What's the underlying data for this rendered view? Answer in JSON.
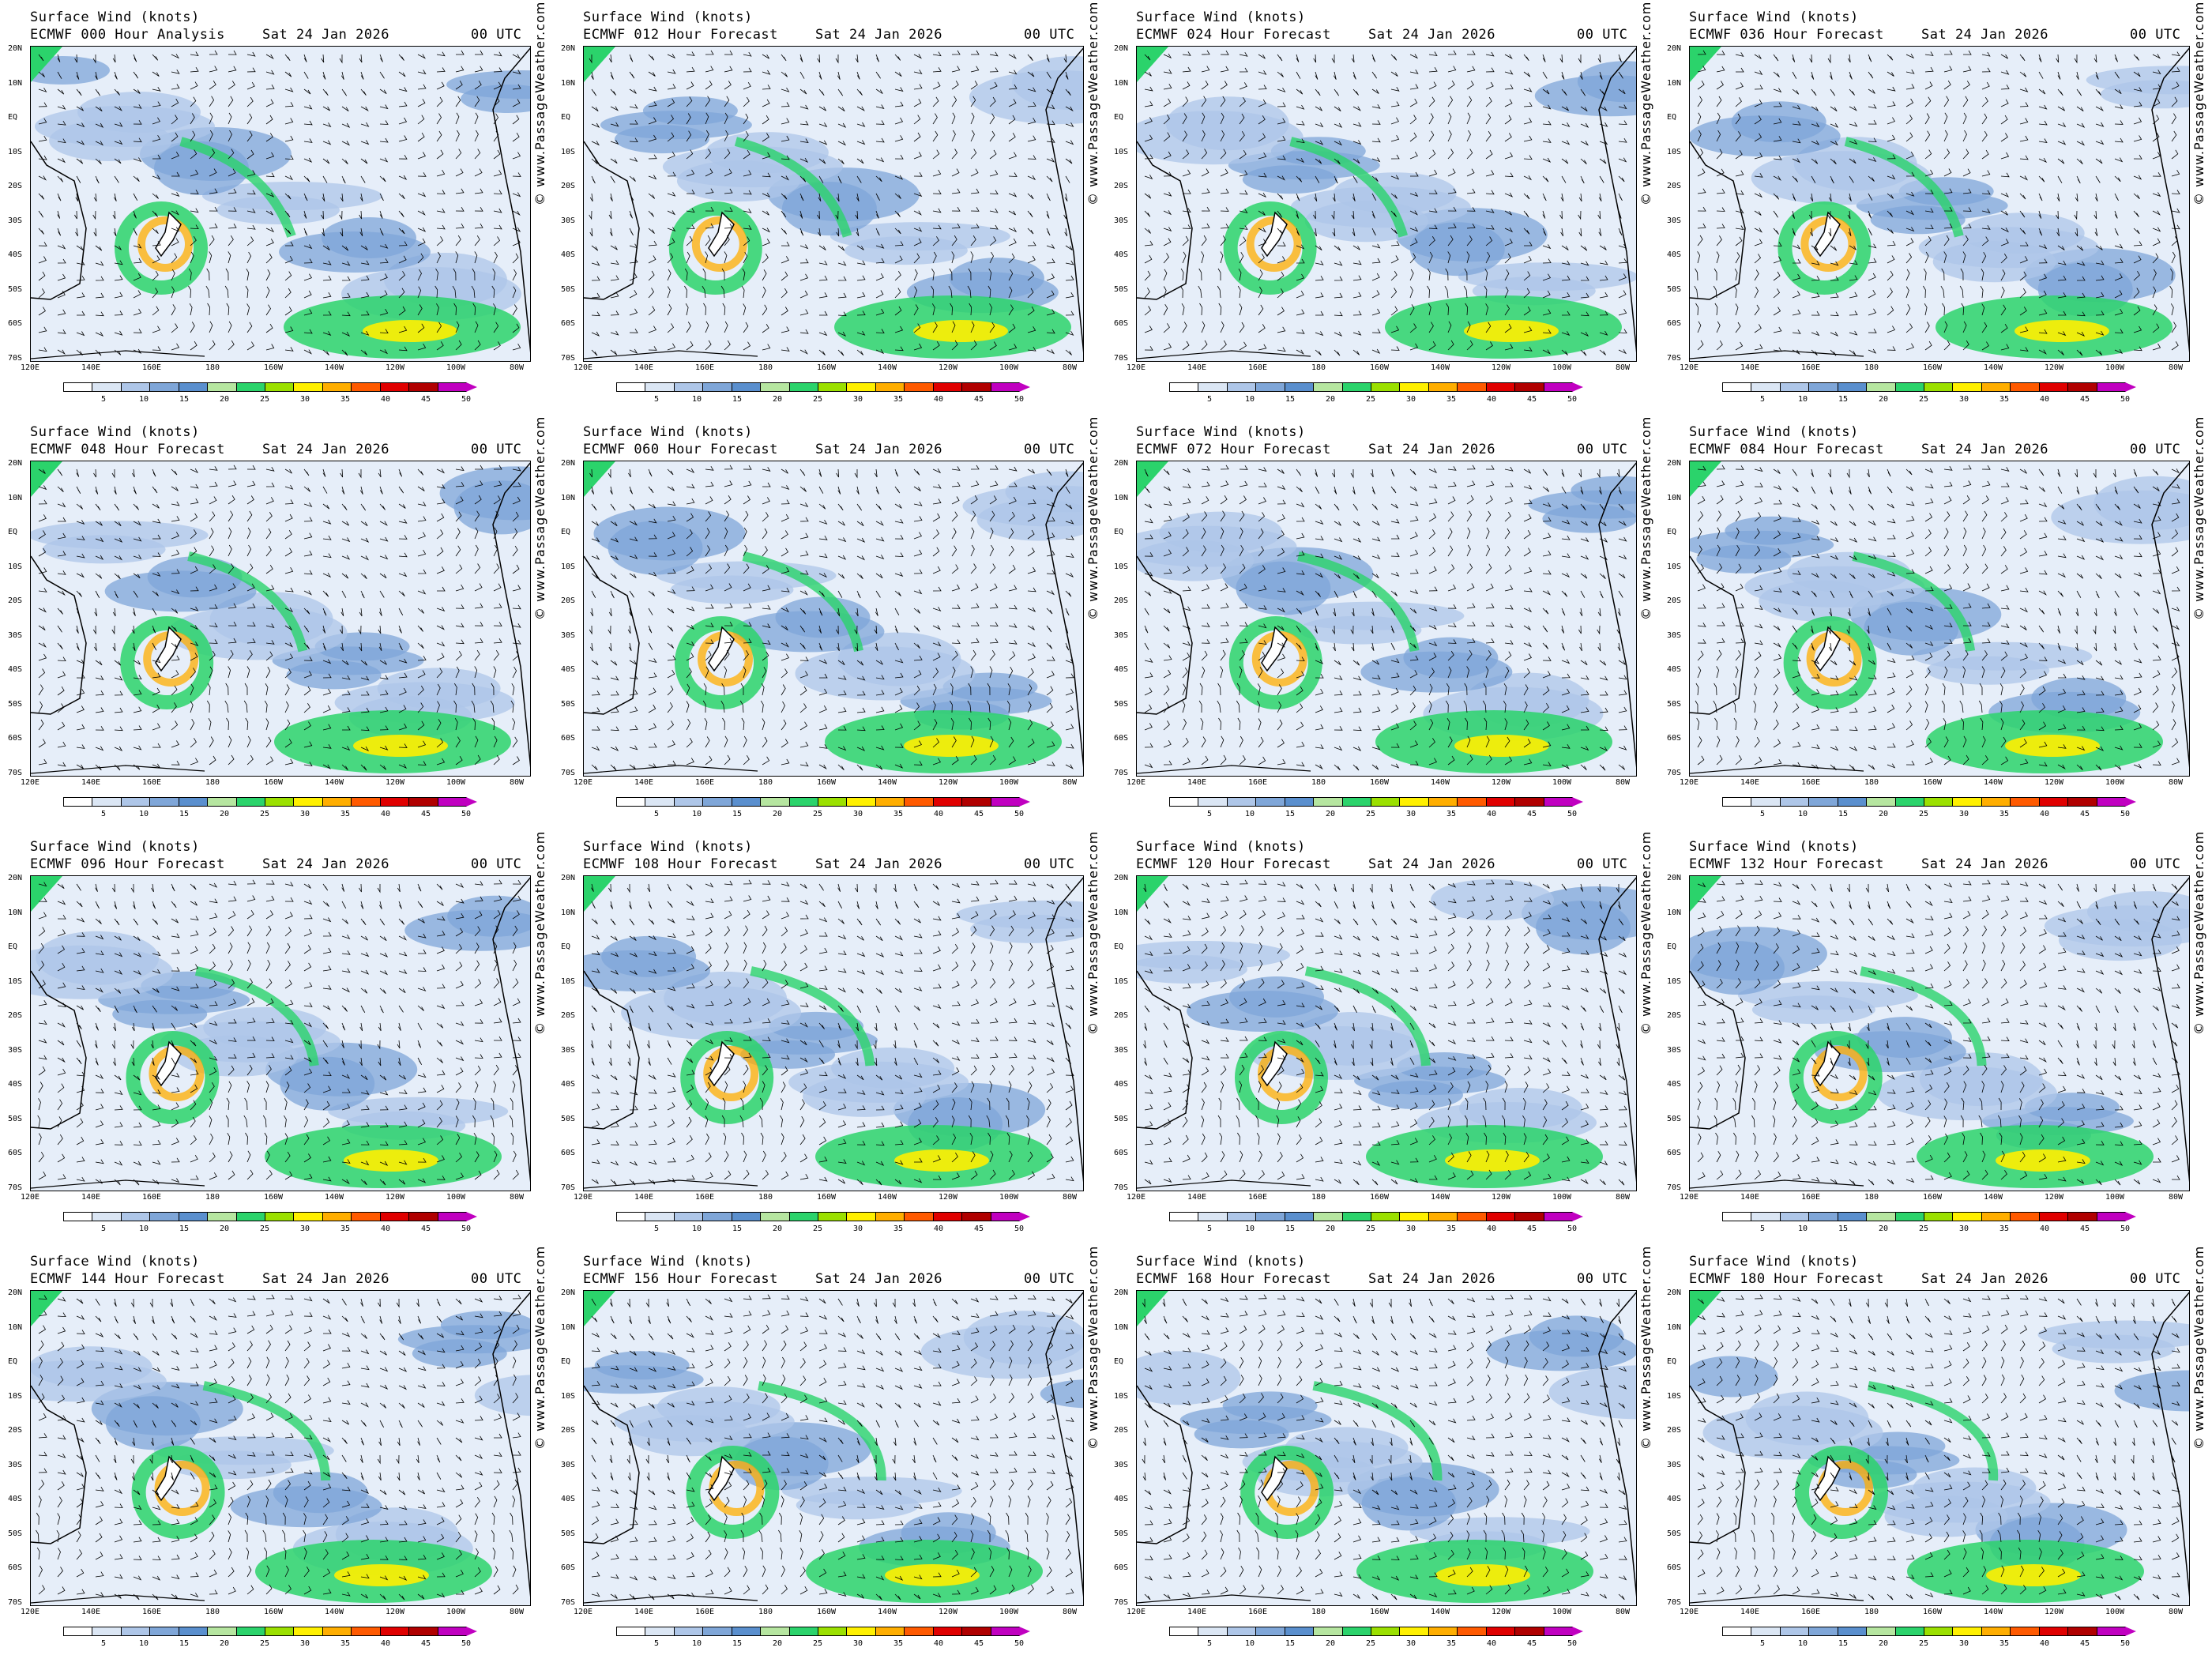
{
  "panel_header": {
    "title": "Surface Wind (knots)",
    "date": "Sat 24 Jan 2026",
    "utc": "00 UTC"
  },
  "panels": [
    {
      "forecast": "ECMWF 000 Hour Analysis"
    },
    {
      "forecast": "ECMWF 012 Hour Forecast"
    },
    {
      "forecast": "ECMWF 024 Hour Forecast"
    },
    {
      "forecast": "ECMWF 036 Hour Forecast"
    },
    {
      "forecast": "ECMWF 048 Hour Forecast"
    },
    {
      "forecast": "ECMWF 060 Hour Forecast"
    },
    {
      "forecast": "ECMWF 072 Hour Forecast"
    },
    {
      "forecast": "ECMWF 084 Hour Forecast"
    },
    {
      "forecast": "ECMWF 096 Hour Forecast"
    },
    {
      "forecast": "ECMWF 108 Hour Forecast"
    },
    {
      "forecast": "ECMWF 120 Hour Forecast"
    },
    {
      "forecast": "ECMWF 132 Hour Forecast"
    },
    {
      "forecast": "ECMWF 144 Hour Forecast"
    },
    {
      "forecast": "ECMWF 156 Hour Forecast"
    },
    {
      "forecast": "ECMWF 168 Hour Forecast"
    },
    {
      "forecast": "ECMWF 180 Hour Forecast"
    }
  ],
  "lat_labels": [
    "20N",
    "10N",
    "EQ",
    "10S",
    "20S",
    "30S",
    "40S",
    "50S",
    "60S",
    "70S"
  ],
  "lon_labels": [
    "120E",
    "140E",
    "160E",
    "180",
    "160W",
    "140W",
    "120W",
    "100W",
    "80W"
  ],
  "credit": "© www.PassageWeather.com",
  "colorbar": {
    "labels": [
      "5",
      "10",
      "15",
      "20",
      "25",
      "30",
      "35",
      "40",
      "45",
      "50"
    ],
    "colors": [
      "#ffffff",
      "#dbe6f4",
      "#aec6e8",
      "#7fa6d8",
      "#5a8fce",
      "#b6e6a0",
      "#2bd36b",
      "#9be000",
      "#fff000",
      "#ffae00",
      "#ff5a00",
      "#e00000",
      "#b00000",
      "#c000c0"
    ]
  }
}
